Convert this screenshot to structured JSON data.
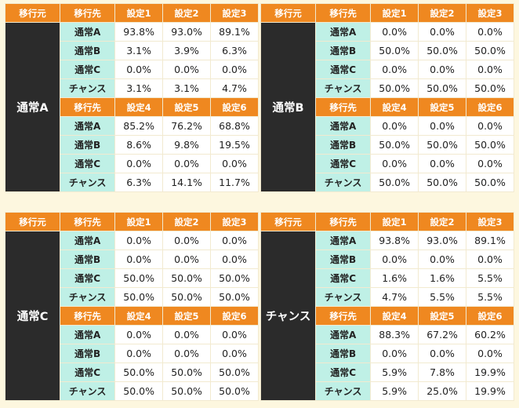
{
  "headers": {
    "source": "移行元",
    "dest": "移行先",
    "settings_a": [
      "設定1",
      "設定2",
      "設定3"
    ],
    "settings_b": [
      "設定4",
      "設定5",
      "設定6"
    ]
  },
  "panels": [
    {
      "source": "通常A",
      "top": [
        {
          "dest": "通常A",
          "values": [
            "93.8%",
            "93.0%",
            "89.1%"
          ]
        },
        {
          "dest": "通常B",
          "values": [
            "3.1%",
            "3.9%",
            "6.3%"
          ]
        },
        {
          "dest": "通常C",
          "values": [
            "0.0%",
            "0.0%",
            "0.0%"
          ]
        },
        {
          "dest": "チャンス",
          "values": [
            "3.1%",
            "3.1%",
            "4.7%"
          ]
        }
      ],
      "bottom": [
        {
          "dest": "通常A",
          "values": [
            "85.2%",
            "76.2%",
            "68.8%"
          ]
        },
        {
          "dest": "通常B",
          "values": [
            "8.6%",
            "9.8%",
            "19.5%"
          ]
        },
        {
          "dest": "通常C",
          "values": [
            "0.0%",
            "0.0%",
            "0.0%"
          ]
        },
        {
          "dest": "チャンス",
          "values": [
            "6.3%",
            "14.1%",
            "11.7%"
          ]
        }
      ]
    },
    {
      "source": "通常B",
      "top": [
        {
          "dest": "通常A",
          "values": [
            "0.0%",
            "0.0%",
            "0.0%"
          ]
        },
        {
          "dest": "通常B",
          "values": [
            "50.0%",
            "50.0%",
            "50.0%"
          ]
        },
        {
          "dest": "通常C",
          "values": [
            "0.0%",
            "0.0%",
            "0.0%"
          ]
        },
        {
          "dest": "チャンス",
          "values": [
            "50.0%",
            "50.0%",
            "50.0%"
          ]
        }
      ],
      "bottom": [
        {
          "dest": "通常A",
          "values": [
            "0.0%",
            "0.0%",
            "0.0%"
          ]
        },
        {
          "dest": "通常B",
          "values": [
            "50.0%",
            "50.0%",
            "50.0%"
          ]
        },
        {
          "dest": "通常C",
          "values": [
            "0.0%",
            "0.0%",
            "0.0%"
          ]
        },
        {
          "dest": "チャンス",
          "values": [
            "50.0%",
            "50.0%",
            "50.0%"
          ]
        }
      ]
    },
    {
      "source": "通常C",
      "top": [
        {
          "dest": "通常A",
          "values": [
            "0.0%",
            "0.0%",
            "0.0%"
          ]
        },
        {
          "dest": "通常B",
          "values": [
            "0.0%",
            "0.0%",
            "0.0%"
          ]
        },
        {
          "dest": "通常C",
          "values": [
            "50.0%",
            "50.0%",
            "50.0%"
          ]
        },
        {
          "dest": "チャンス",
          "values": [
            "50.0%",
            "50.0%",
            "50.0%"
          ]
        }
      ],
      "bottom": [
        {
          "dest": "通常A",
          "values": [
            "0.0%",
            "0.0%",
            "0.0%"
          ]
        },
        {
          "dest": "通常B",
          "values": [
            "0.0%",
            "0.0%",
            "0.0%"
          ]
        },
        {
          "dest": "通常C",
          "values": [
            "50.0%",
            "50.0%",
            "50.0%"
          ]
        },
        {
          "dest": "チャンス",
          "values": [
            "50.0%",
            "50.0%",
            "50.0%"
          ]
        }
      ]
    },
    {
      "source": "チャンス",
      "top": [
        {
          "dest": "通常A",
          "values": [
            "93.8%",
            "93.0%",
            "89.1%"
          ]
        },
        {
          "dest": "通常B",
          "values": [
            "0.0%",
            "0.0%",
            "0.0%"
          ]
        },
        {
          "dest": "通常C",
          "values": [
            "1.6%",
            "1.6%",
            "5.5%"
          ]
        },
        {
          "dest": "チャンス",
          "values": [
            "4.7%",
            "5.5%",
            "5.5%"
          ]
        }
      ],
      "bottom": [
        {
          "dest": "通常A",
          "values": [
            "88.3%",
            "67.2%",
            "60.2%"
          ]
        },
        {
          "dest": "通常B",
          "values": [
            "0.0%",
            "0.0%",
            "0.0%"
          ]
        },
        {
          "dest": "通常C",
          "values": [
            "5.9%",
            "7.8%",
            "19.9%"
          ]
        },
        {
          "dest": "チャンス",
          "values": [
            "5.9%",
            "25.0%",
            "19.9%"
          ]
        }
      ]
    }
  ]
}
